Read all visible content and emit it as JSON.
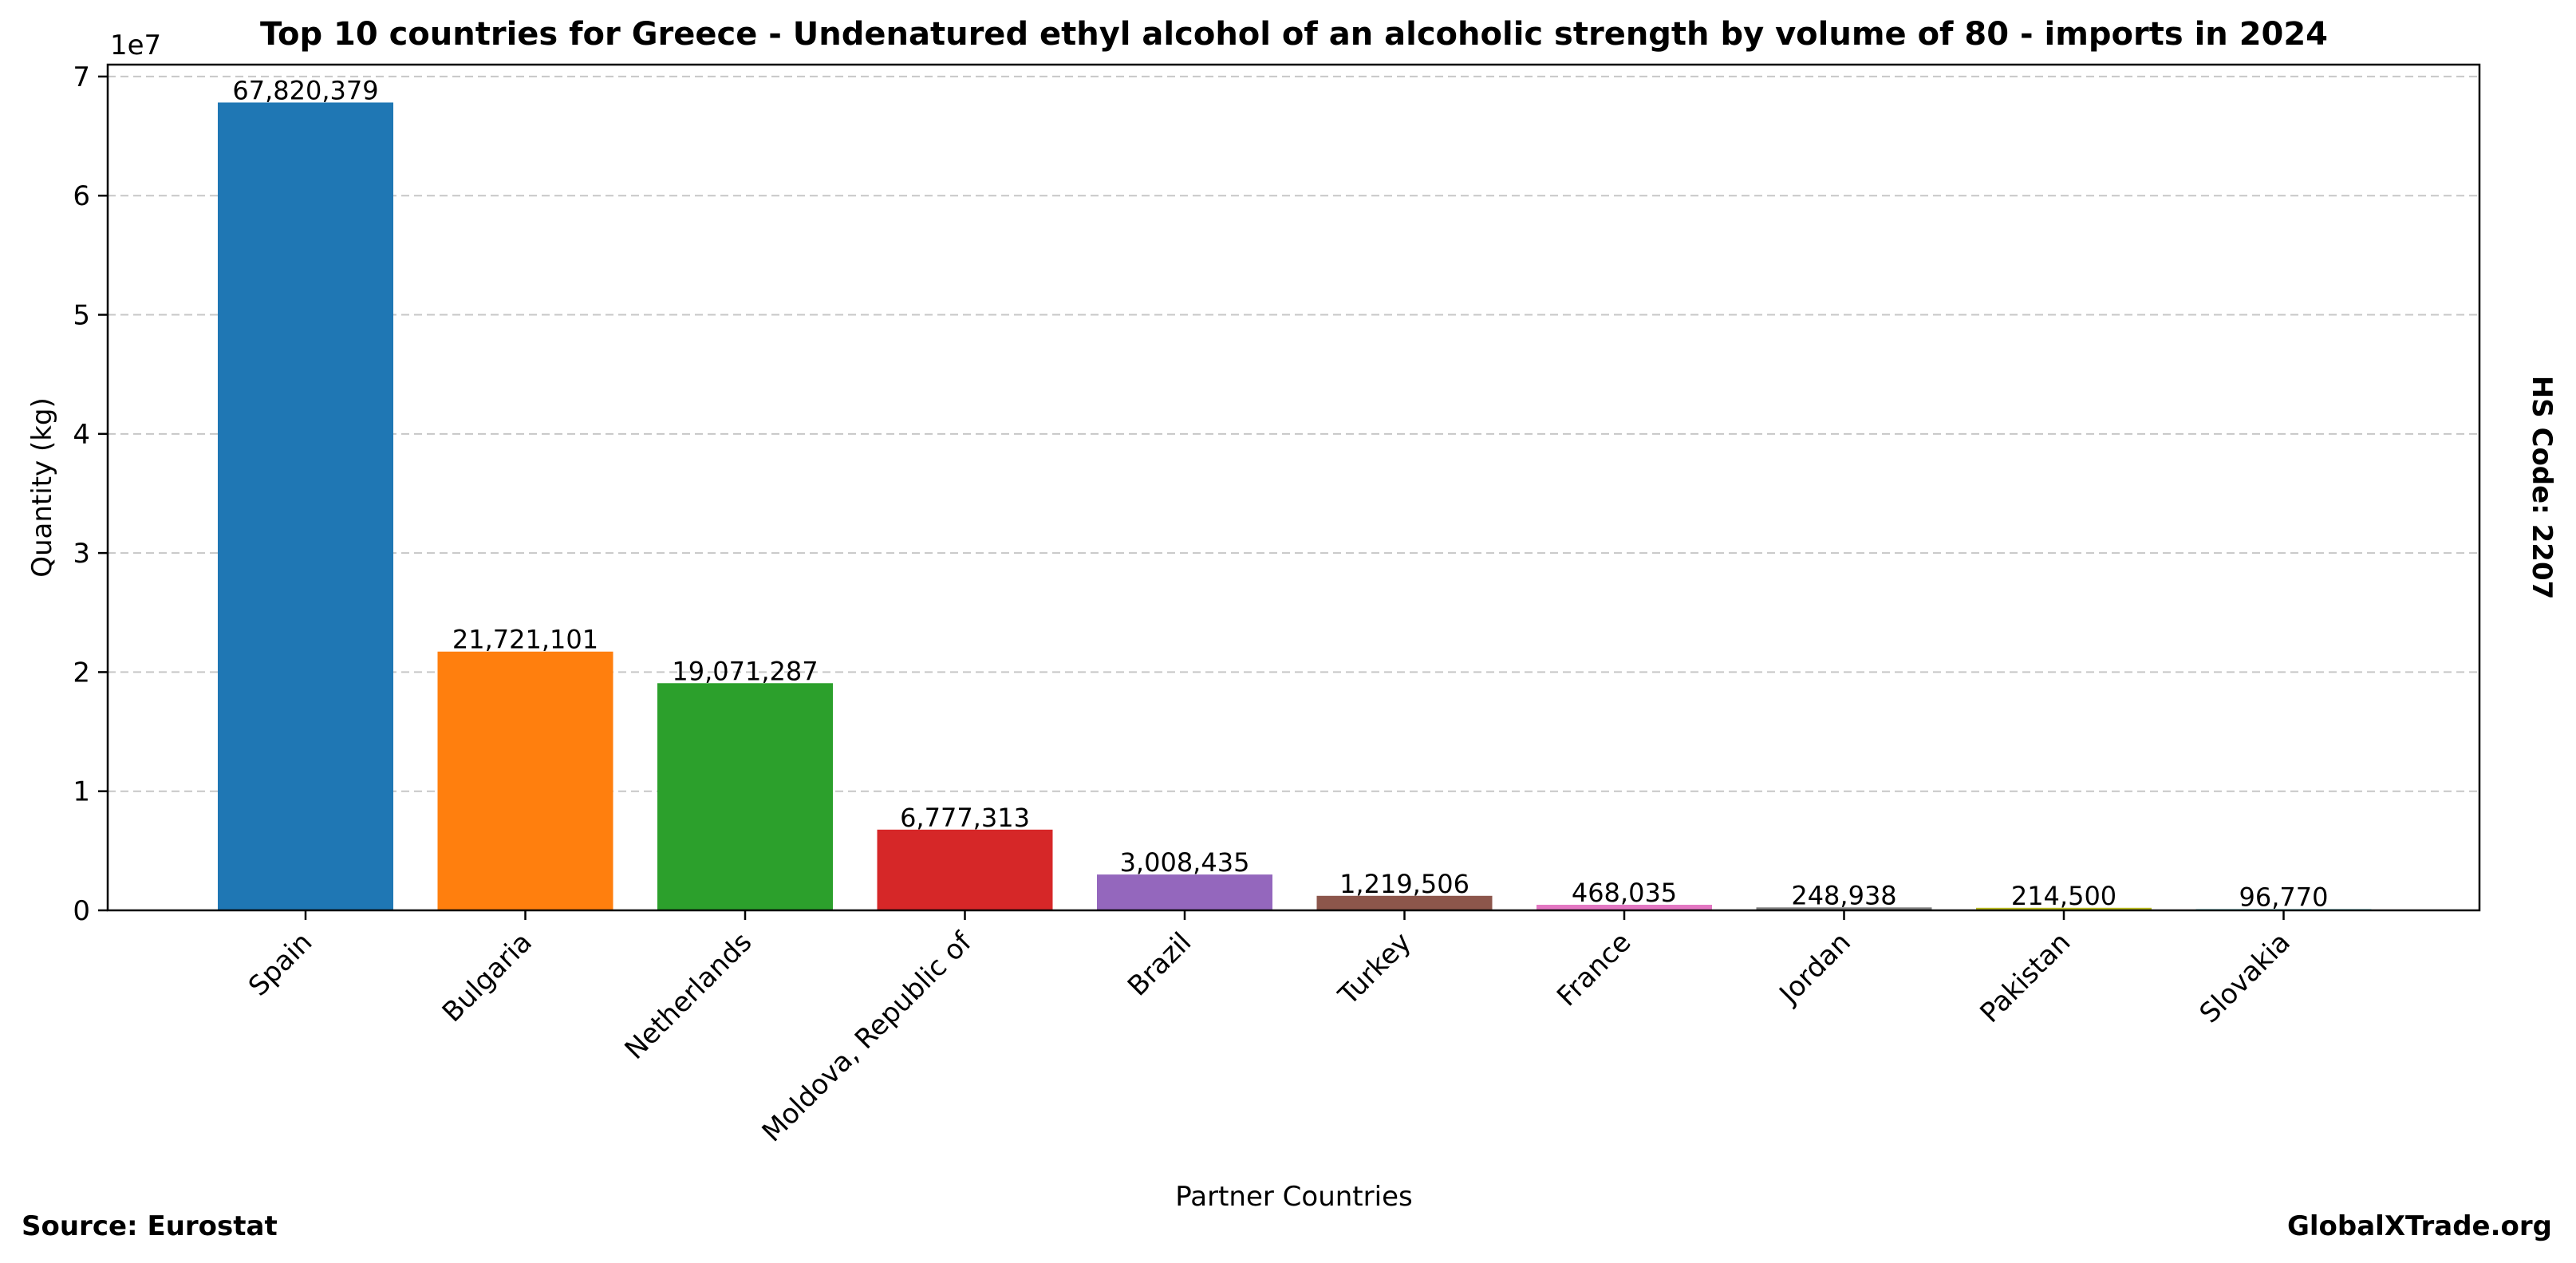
{
  "chart_data": {
    "type": "bar",
    "title": "Top 10 countries for Greece - Undenatured ethyl alcohol of an alcoholic strength by volume of 80 - imports in 2024",
    "xlabel": "Partner Countries",
    "ylabel": "Quantity (kg)",
    "y_offset_label": "1e7",
    "ylim": [
      0,
      71000000
    ],
    "yticks": [
      0,
      10000000,
      20000000,
      30000000,
      40000000,
      50000000,
      60000000,
      70000000
    ],
    "ytick_labels": [
      "0",
      "1",
      "2",
      "3",
      "4",
      "5",
      "6",
      "7"
    ],
    "grid": "y-dashed",
    "categories": [
      "Spain",
      "Bulgaria",
      "Netherlands",
      "Moldova, Republic of",
      "Brazil",
      "Turkey",
      "France",
      "Jordan",
      "Pakistan",
      "Slovakia"
    ],
    "values": [
      67820379,
      21721101,
      19071287,
      6777313,
      3008435,
      1219506,
      468035,
      248938,
      214500,
      96770
    ],
    "value_labels": [
      "67,820,379",
      "21,721,101",
      "19,071,287",
      "6,777,313",
      "3,008,435",
      "1,219,506",
      "468,035",
      "248,938",
      "214,500",
      "96,770"
    ],
    "colors": [
      "#1f77b4",
      "#ff7f0e",
      "#2ca02c",
      "#d62728",
      "#9467bd",
      "#8c564b",
      "#e377c2",
      "#7f7f7f",
      "#bcbd22",
      "#17becf"
    ]
  },
  "footer": {
    "source": "Source: Eurostat",
    "brand": "GlobalXTrade.org"
  },
  "side_label": "HS Code: 2207"
}
